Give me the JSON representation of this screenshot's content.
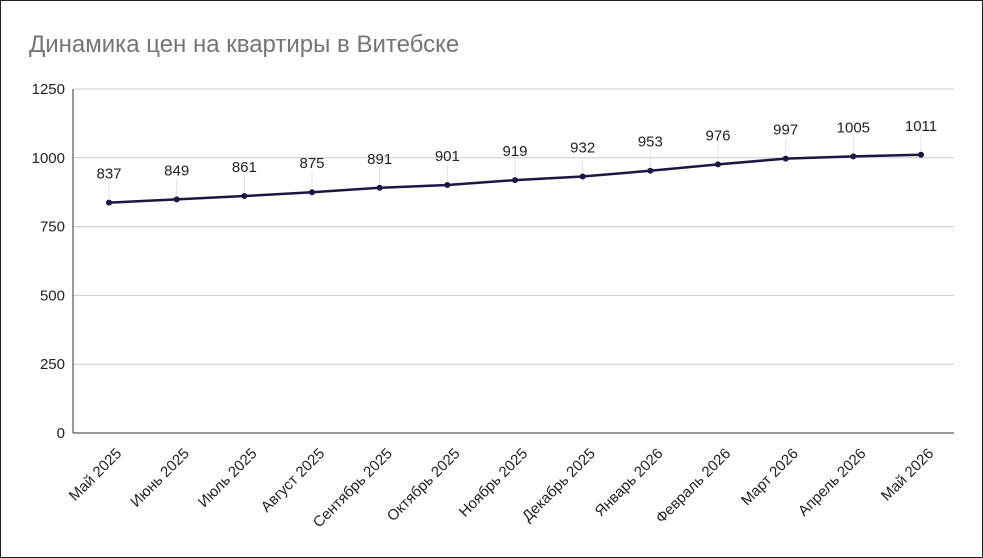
{
  "chart_data": {
    "type": "line",
    "title": "Динамика цен на квартиры в Витебске",
    "xlabel": "",
    "ylabel": "",
    "ylim": [
      0,
      1250
    ],
    "yticks": [
      0,
      250,
      500,
      750,
      1000,
      1250
    ],
    "grid": true,
    "legend": "none",
    "categories": [
      "Май 2025",
      "Июнь 2025",
      "Июль 2025",
      "Август 2025",
      "Сентябрь 2025",
      "Октябрь 2025",
      "Ноябрь 2025",
      "Декабрь 2025",
      "Январь 2026",
      "Февраль 2026",
      "Март 2026",
      "Апрель 2026",
      "Май 2026"
    ],
    "series": [
      {
        "values": [
          837,
          849,
          861,
          875,
          891,
          901,
          919,
          932,
          953,
          976,
          997,
          1005,
          1011
        ],
        "color": "#1c1642"
      }
    ]
  }
}
